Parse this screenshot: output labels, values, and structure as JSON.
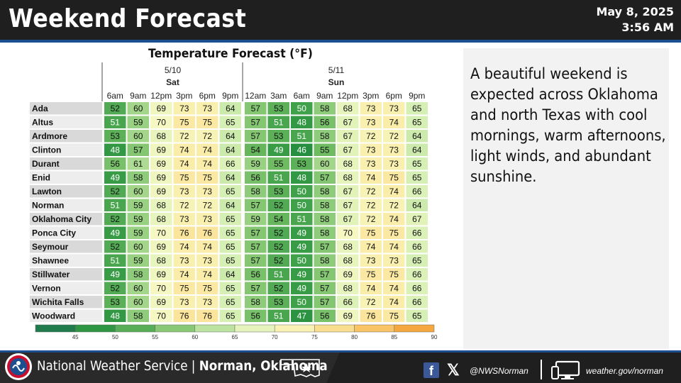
{
  "header": {
    "title": "Weekend Forecast",
    "date": "May 8, 2025",
    "time": "3:56 AM"
  },
  "chart_title": "Temperature Forecast (°F)",
  "chart_data": {
    "type": "heatmap",
    "title": "Temperature Forecast (°F)",
    "days": [
      {
        "date": "5/10",
        "day": "Sat"
      },
      {
        "date": "5/11",
        "day": "Sun"
      }
    ],
    "times": [
      "6am",
      "9am",
      "12pm",
      "3pm",
      "6pm",
      "9pm",
      "12am",
      "3am",
      "6am",
      "9am",
      "12pm",
      "3pm",
      "6pm",
      "9pm"
    ],
    "locations": [
      "Ada",
      "Altus",
      "Ardmore",
      "Clinton",
      "Durant",
      "Enid",
      "Lawton",
      "Norman",
      "Oklahoma City",
      "Ponca City",
      "Seymour",
      "Shawnee",
      "Stillwater",
      "Vernon",
      "Wichita Falls",
      "Woodward"
    ],
    "values": [
      [
        52,
        60,
        69,
        73,
        73,
        64,
        57,
        53,
        50,
        58,
        68,
        73,
        73,
        65
      ],
      [
        51,
        59,
        70,
        75,
        75,
        65,
        57,
        51,
        48,
        56,
        67,
        73,
        74,
        65
      ],
      [
        53,
        60,
        68,
        72,
        72,
        64,
        57,
        53,
        51,
        58,
        67,
        72,
        72,
        64
      ],
      [
        48,
        57,
        69,
        74,
        74,
        64,
        54,
        49,
        46,
        55,
        67,
        73,
        73,
        64
      ],
      [
        56,
        61,
        69,
        74,
        74,
        66,
        59,
        55,
        53,
        60,
        68,
        73,
        73,
        65
      ],
      [
        49,
        58,
        69,
        75,
        75,
        64,
        56,
        51,
        48,
        57,
        68,
        74,
        75,
        65
      ],
      [
        52,
        60,
        69,
        73,
        73,
        65,
        58,
        53,
        50,
        58,
        67,
        72,
        74,
        66
      ],
      [
        51,
        59,
        68,
        72,
        72,
        64,
        57,
        52,
        50,
        58,
        67,
        72,
        72,
        64
      ],
      [
        52,
        59,
        68,
        73,
        73,
        65,
        59,
        54,
        51,
        58,
        67,
        72,
        74,
        67
      ],
      [
        49,
        59,
        70,
        76,
        76,
        65,
        57,
        52,
        49,
        58,
        70,
        75,
        75,
        66
      ],
      [
        52,
        60,
        69,
        74,
        74,
        65,
        57,
        52,
        49,
        57,
        68,
        74,
        74,
        66
      ],
      [
        51,
        59,
        68,
        73,
        73,
        65,
        57,
        52,
        50,
        58,
        68,
        73,
        73,
        65
      ],
      [
        49,
        58,
        69,
        74,
        74,
        64,
        56,
        51,
        49,
        57,
        69,
        75,
        75,
        66
      ],
      [
        52,
        60,
        70,
        75,
        75,
        65,
        57,
        52,
        49,
        57,
        68,
        74,
        74,
        66
      ],
      [
        53,
        60,
        69,
        73,
        73,
        65,
        58,
        53,
        50,
        57,
        66,
        72,
        74,
        66
      ],
      [
        48,
        58,
        70,
        76,
        76,
        65,
        56,
        51,
        47,
        56,
        69,
        76,
        75,
        65
      ]
    ],
    "legend_ticks": [
      45,
      50,
      55,
      60,
      65,
      70,
      75,
      80,
      85,
      90
    ],
    "legend_range": [
      40,
      90
    ],
    "colors": {
      "stops": [
        {
          "v": 40,
          "c": "#1f6b5a"
        },
        {
          "v": 45,
          "c": "#1e8a3c"
        },
        {
          "v": 50,
          "c": "#3fa14a"
        },
        {
          "v": 55,
          "c": "#6fbb62"
        },
        {
          "v": 60,
          "c": "#a3d68a"
        },
        {
          "v": 65,
          "c": "#d5efb5"
        },
        {
          "v": 70,
          "c": "#f5f8c2"
        },
        {
          "v": 75,
          "c": "#fbe9a3"
        },
        {
          "v": 80,
          "c": "#f9d27c"
        },
        {
          "v": 85,
          "c": "#f6b650"
        },
        {
          "v": 90,
          "c": "#f29a2e"
        }
      ]
    }
  },
  "summary": "A beautiful weekend is expected across Oklahoma and north Texas with cool mornings, warm afternoons, light winds, and abundant sunshine.",
  "footer": {
    "office_prefix": "National Weather Service | ",
    "office_name": "Norman, Oklahoma",
    "social_handle": "@NWSNorman",
    "website": "weather.gov/norman",
    "icons": [
      "nws-logo-icon",
      "oklahoma-star-icon",
      "facebook-icon",
      "x-icon",
      "computer-monitor-icon"
    ]
  }
}
